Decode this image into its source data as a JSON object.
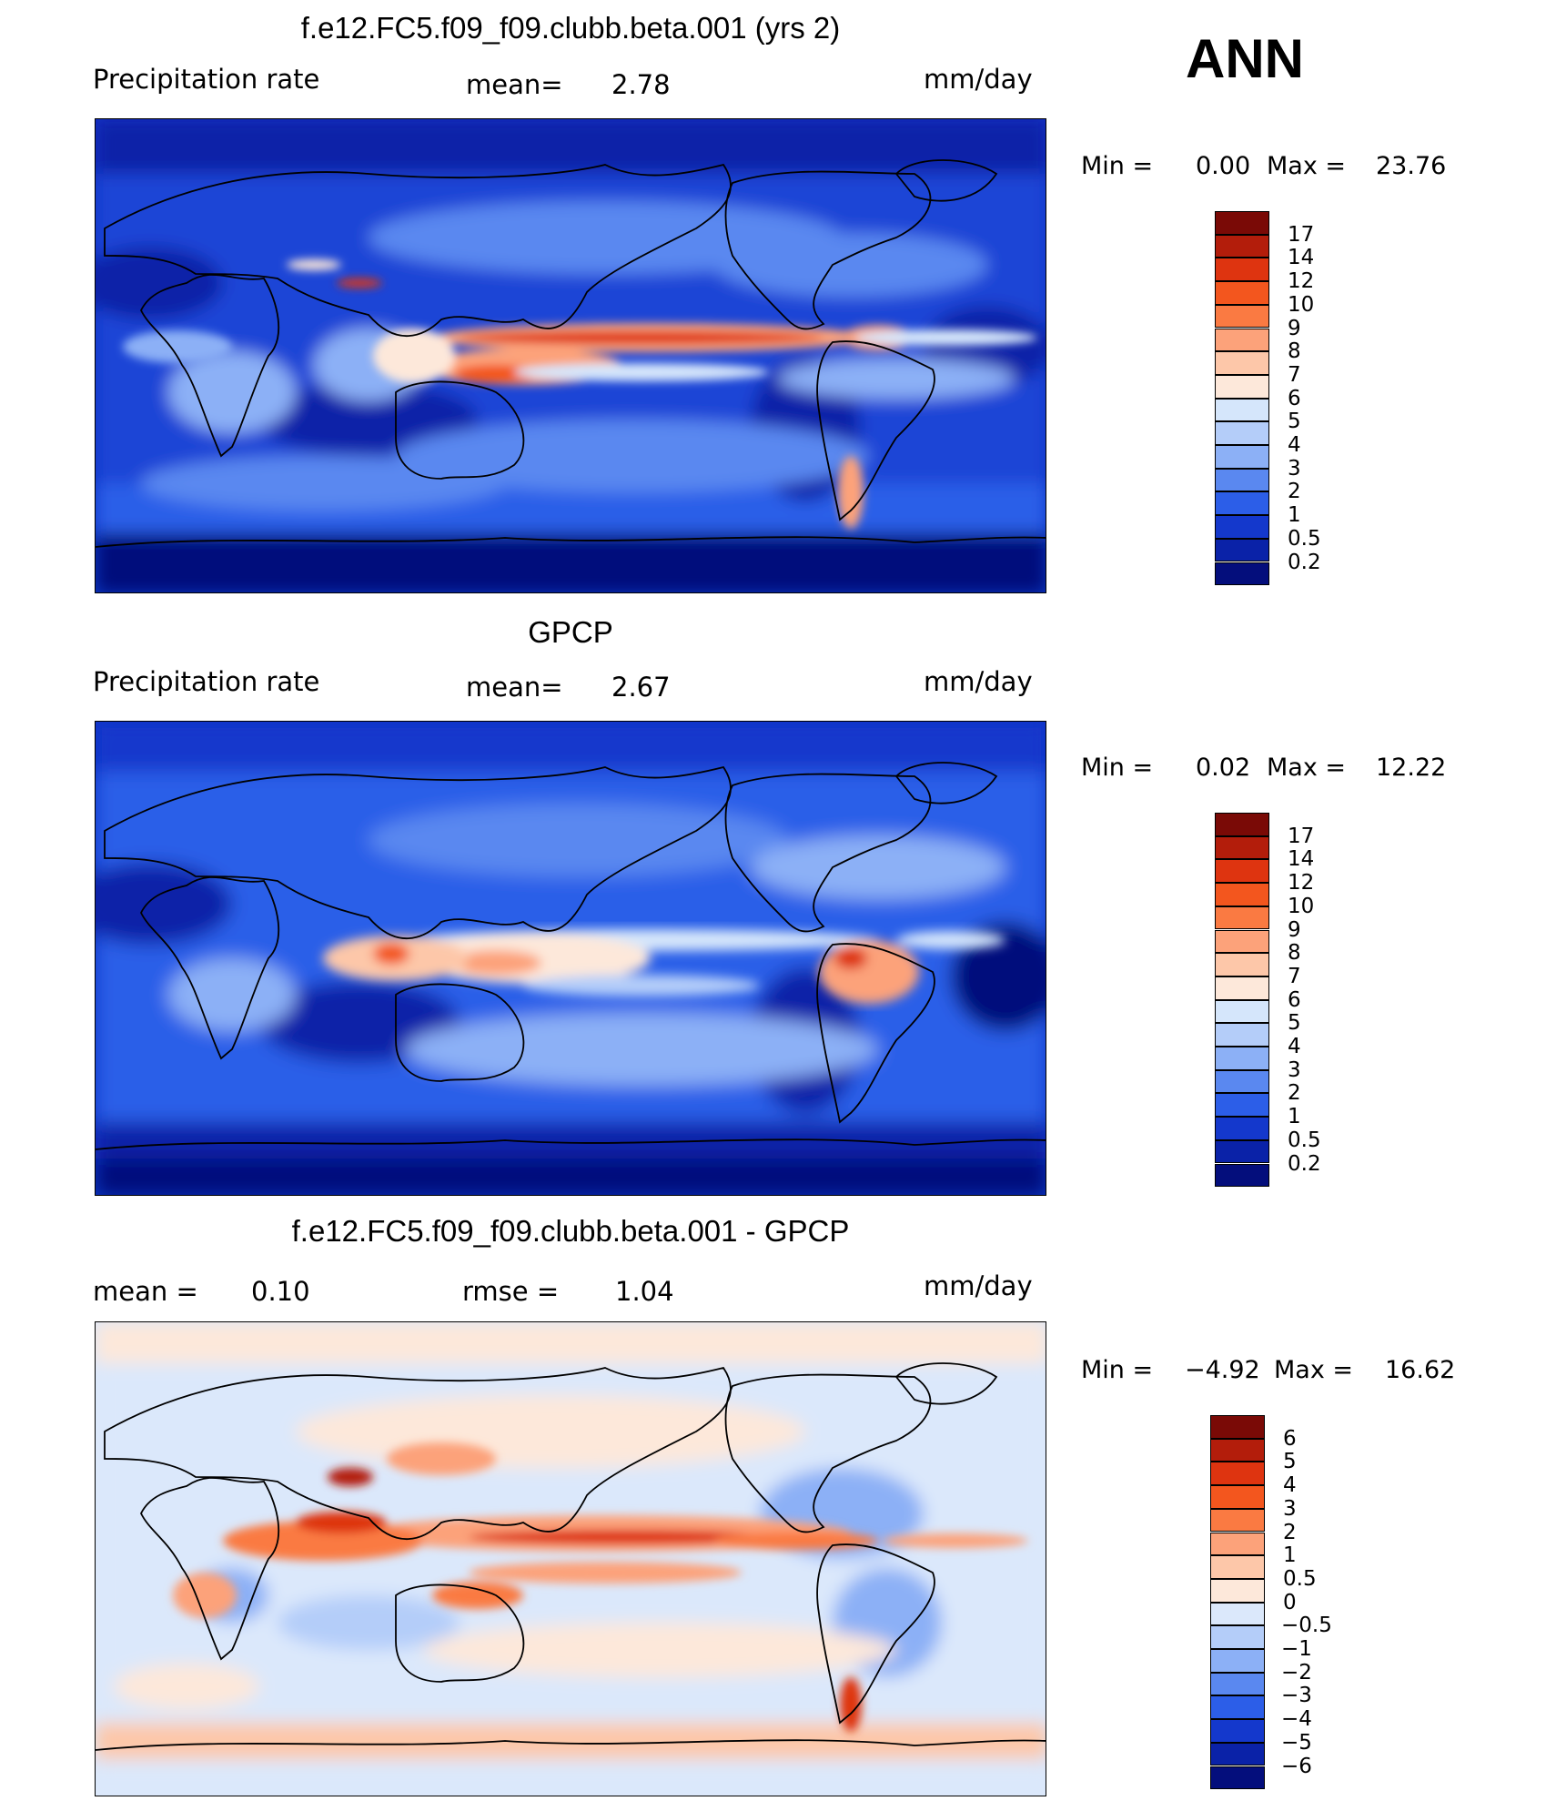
{
  "season": "ANN",
  "panels": [
    {
      "id": "model",
      "title": "f.e12.FC5.f09_f09.clubb.beta.001 (yrs 2)",
      "left_label": "Precipitation  rate",
      "mid_label": "mean=",
      "mid_value": "2.78",
      "units": "mm/day",
      "min_label": "Min  =",
      "min_value": "0.00",
      "max_label": "Max  =",
      "max_value": "23.76"
    },
    {
      "id": "obs",
      "title": "GPCP",
      "left_label": "Precipitation  rate",
      "mid_label": "mean=",
      "mid_value": "2.67",
      "units": "mm/day",
      "min_label": "Min  =",
      "min_value": "0.02",
      "max_label": "Max  =",
      "max_value": "12.22"
    },
    {
      "id": "diff",
      "title": "f.e12.FC5.f09_f09.clubb.beta.001 - GPCP",
      "left_label": "mean  =",
      "left_value": "0.10",
      "mid_label": "rmse  =",
      "mid_value": "1.04",
      "units": "mm/day",
      "min_label": "Min  =",
      "min_value": "−4.92",
      "max_label": "Max  =",
      "max_value": "16.62"
    }
  ],
  "chart_data": [
    {
      "type": "heatmap",
      "title": "f.e12.FC5.f09_f09.clubb.beta.001 (yrs 2)",
      "variable": "Precipitation rate",
      "units": "mm/day",
      "mean": 2.78,
      "min": 0.0,
      "max": 23.76,
      "colorbar_levels": [
        "17",
        "14",
        "12",
        "10",
        "9",
        "8",
        "7",
        "6",
        "5",
        "4",
        "3",
        "2",
        "1",
        "0.5",
        "0.2"
      ],
      "colorbar_colors": [
        "#7a0a06",
        "#b31d0b",
        "#de3410",
        "#f3561e",
        "#fa7a42",
        "#fca27a",
        "#fdc7a9",
        "#fde8da",
        "#d5e6fb",
        "#b4cdf9",
        "#8cb0f6",
        "#5a88f0",
        "#2c5ee8",
        "#1438cc",
        "#0a22a8",
        "#040e7c"
      ]
    },
    {
      "type": "heatmap",
      "title": "GPCP",
      "variable": "Precipitation rate",
      "units": "mm/day",
      "mean": 2.67,
      "min": 0.02,
      "max": 12.22,
      "colorbar_levels": [
        "17",
        "14",
        "12",
        "10",
        "9",
        "8",
        "7",
        "6",
        "5",
        "4",
        "3",
        "2",
        "1",
        "0.5",
        "0.2"
      ],
      "colorbar_colors": [
        "#7a0a06",
        "#b31d0b",
        "#de3410",
        "#f3561e",
        "#fa7a42",
        "#fca27a",
        "#fdc7a9",
        "#fde8da",
        "#d5e6fb",
        "#b4cdf9",
        "#8cb0f6",
        "#5a88f0",
        "#2c5ee8",
        "#1438cc",
        "#0a22a8",
        "#040e7c"
      ]
    },
    {
      "type": "heatmap",
      "title": "f.e12.FC5.f09_f09.clubb.beta.001 - GPCP",
      "units": "mm/day",
      "mean": 0.1,
      "rmse": 1.04,
      "min": -4.92,
      "max": 16.62,
      "colorbar_levels": [
        "6",
        "5",
        "4",
        "3",
        "2",
        "1",
        "0.5",
        "0",
        "−0.5",
        "−1",
        "−2",
        "−3",
        "−4",
        "−5",
        "−6"
      ],
      "colorbar_colors": [
        "#7a0a06",
        "#b31d0b",
        "#de3410",
        "#f3561e",
        "#fa7a42",
        "#fca27a",
        "#fdc7a9",
        "#fde8da",
        "#dbe8fb",
        "#b4cdf9",
        "#8cb0f6",
        "#5a88f0",
        "#2c5ee8",
        "#1438cc",
        "#0a22a8",
        "#040e7c"
      ]
    }
  ]
}
